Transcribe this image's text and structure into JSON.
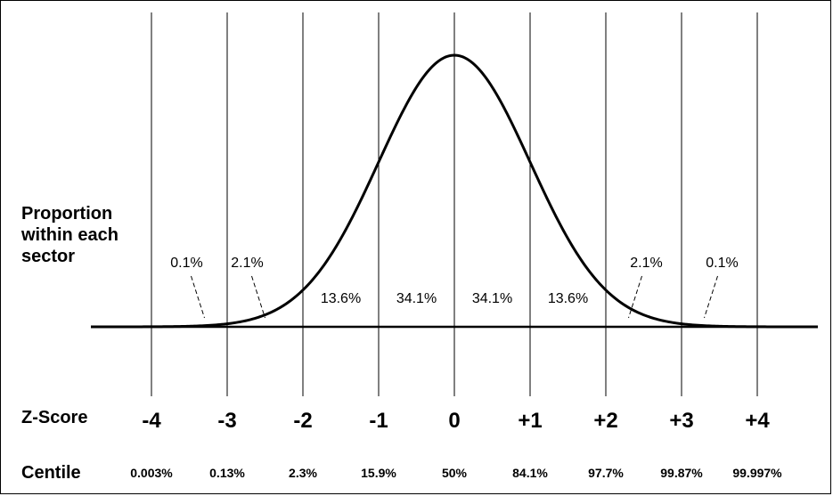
{
  "labels": {
    "proportion": "Proportion within each sector",
    "zscore": "Z-Score",
    "centile": "Centile"
  },
  "z_scores": [
    "-4",
    "-3",
    "-2",
    "-1",
    "0",
    "+1",
    "+2",
    "+3",
    "+4"
  ],
  "centiles": [
    "0.003%",
    "0.13%",
    "2.3%",
    "15.9%",
    "50%",
    "84.1%",
    "97.7%",
    "99.87%",
    "99.997%"
  ],
  "sector_proportions": [
    {
      "z_from": -2,
      "z_to": -1,
      "text": "13.6%"
    },
    {
      "z_from": -1,
      "z_to": 0,
      "text": "34.1%"
    },
    {
      "z_from": 0,
      "z_to": 1,
      "text": "34.1%"
    },
    {
      "z_from": 1,
      "z_to": 2,
      "text": "13.6%"
    }
  ],
  "tail_callouts": [
    {
      "text": "0.1%",
      "z": -3.3
    },
    {
      "text": "2.1%",
      "z": -2.5
    },
    {
      "text": "2.1%",
      "z": 2.3
    },
    {
      "text": "0.1%",
      "z": 3.3
    }
  ],
  "curve": {
    "type": "normal-distribution",
    "z_min": -4.8,
    "z_max": 4.8
  }
}
